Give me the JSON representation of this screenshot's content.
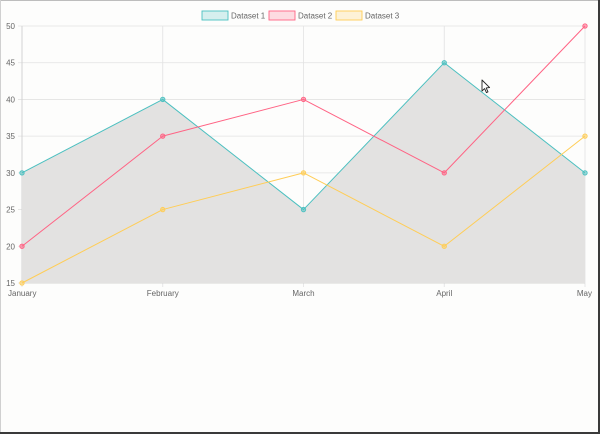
{
  "chart_data": {
    "type": "line",
    "categories": [
      "January",
      "February",
      "March",
      "April",
      "May"
    ],
    "series": [
      {
        "name": "Dataset 1",
        "values": [
          30,
          40,
          25,
          45,
          30
        ],
        "color": "#4bc0c0",
        "fill": true
      },
      {
        "name": "Dataset 2",
        "values": [
          20,
          35,
          40,
          30,
          50
        ],
        "color": "#ff6384",
        "fill": false
      },
      {
        "name": "Dataset 3",
        "values": [
          15,
          25,
          30,
          20,
          35
        ],
        "color": "#ffcd56",
        "fill": false
      }
    ],
    "ylim": [
      15,
      50
    ],
    "yticks": [
      15,
      20,
      25,
      30,
      35,
      40,
      45,
      50
    ],
    "grid": true,
    "legend": "top-center",
    "fill_color": "#e3e2e1"
  }
}
